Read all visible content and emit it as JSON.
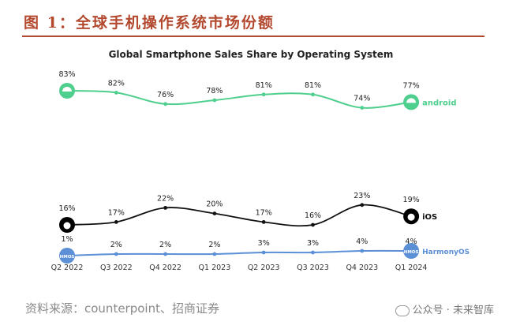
{
  "figure": {
    "title": "图 1：全球手机操作系统市场份额",
    "source": "资料来源：counterpoint、招商证券",
    "watermark": "公众号 · 未来智库"
  },
  "chart_data": {
    "type": "line",
    "title": "Global Smartphone Sales Share by Operating System",
    "categories": [
      "Q2 2022",
      "Q3 2022",
      "Q4 2022",
      "Q1 2023",
      "Q2 2023",
      "Q3 2023",
      "Q4 2023",
      "Q1 2024"
    ],
    "series": [
      {
        "name": "android",
        "values": [
          83,
          82,
          76,
          78,
          81,
          81,
          74,
          77
        ],
        "labels": [
          "83%",
          "82%",
          "76%",
          "78%",
          "81%",
          "81%",
          "74%",
          "77%"
        ],
        "color": "#4fcf8e"
      },
      {
        "name": "iOS",
        "values": [
          16,
          17,
          22,
          20,
          17,
          16,
          23,
          19
        ],
        "labels": [
          "16%",
          "17%",
          "22%",
          "20%",
          "17%",
          "16%",
          "23%",
          "19%"
        ],
        "color": "#111111"
      },
      {
        "name": "HarmonyOS",
        "values": [
          1,
          2,
          2,
          2,
          3,
          3,
          4,
          4
        ],
        "labels": [
          "1%",
          "2%",
          "2%",
          "2%",
          "3%",
          "3%",
          "4%",
          "4%"
        ],
        "color": "#5b8fd6"
      }
    ],
    "end_icon_text": {
      "harmony": "HMOS"
    },
    "xlabel": "",
    "ylabel": "",
    "grid": false,
    "legend": "inline-right"
  }
}
